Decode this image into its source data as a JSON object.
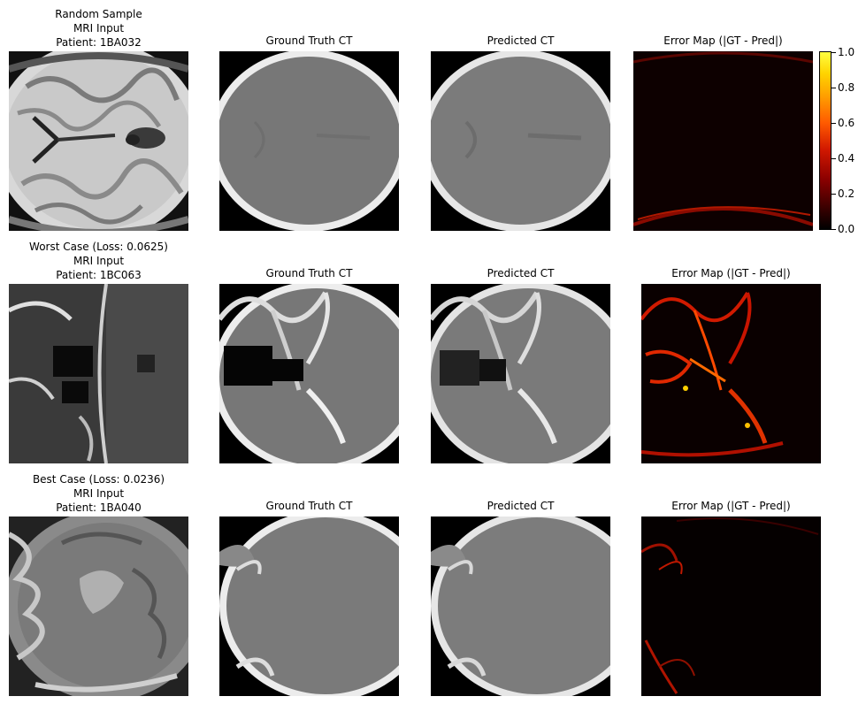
{
  "rows": [
    {
      "mri_title": [
        "Random Sample",
        "MRI Input",
        "Patient: 1BA032"
      ],
      "gt_title": "Ground Truth CT",
      "pred_title": "Predicted CT",
      "err_title": "Error Map (|GT - Pred|)"
    },
    {
      "mri_title": [
        "Worst Case (Loss: 0.0625)",
        "MRI Input",
        "Patient: 1BC063"
      ],
      "gt_title": "Ground Truth CT",
      "pred_title": "Predicted CT",
      "err_title": "Error Map (|GT - Pred|)"
    },
    {
      "mri_title": [
        "Best Case (Loss: 0.0236)",
        "MRI Input",
        "Patient: 1BA040"
      ],
      "gt_title": "Ground Truth CT",
      "pred_title": "Predicted CT",
      "err_title": "Error Map (|GT - Pred|)"
    }
  ],
  "colorbar": {
    "ticks": [
      "0.0",
      "0.2",
      "0.4",
      "0.6",
      "0.8",
      "1.0"
    ],
    "colormap": "hot"
  }
}
